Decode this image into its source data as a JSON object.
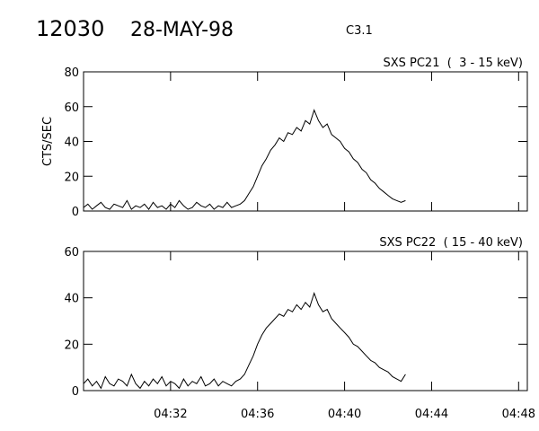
{
  "header": {
    "title": "12030",
    "date": "28-MAY-98",
    "class": "C3.1"
  },
  "chart_data": [
    {
      "type": "line",
      "subtitle": "SXS PC21  (  3 - 15 keV)",
      "ylabel": "CTS/SEC",
      "xlim": [
        28,
        48.4
      ],
      "ylim": [
        0,
        80
      ],
      "yticks": [
        0,
        20,
        40,
        60,
        80
      ],
      "x": [
        28.0,
        28.2,
        28.4,
        28.6,
        28.8,
        29.0,
        29.2,
        29.4,
        29.6,
        29.8,
        30.0,
        30.2,
        30.4,
        30.6,
        30.8,
        31.0,
        31.2,
        31.4,
        31.6,
        31.8,
        32.0,
        32.2,
        32.4,
        32.6,
        32.8,
        33.0,
        33.2,
        33.4,
        33.6,
        33.8,
        34.0,
        34.2,
        34.4,
        34.6,
        34.8,
        35.0,
        35.2,
        35.4,
        35.6,
        35.8,
        36.0,
        36.2,
        36.4,
        36.6,
        36.8,
        37.0,
        37.2,
        37.4,
        37.6,
        37.8,
        38.0,
        38.2,
        38.4,
        38.6,
        38.8,
        39.0,
        39.2,
        39.4,
        39.6,
        39.8,
        40.0,
        40.2,
        40.4,
        40.6,
        40.8,
        41.0,
        41.2,
        41.4,
        41.6,
        41.8,
        42.0,
        42.2,
        42.4,
        42.6,
        42.8
      ],
      "series": [
        {
          "color": "#000000",
          "values": [
            2,
            4,
            1,
            3,
            5,
            2,
            1,
            4,
            3,
            2,
            6,
            1,
            3,
            2,
            4,
            1,
            5,
            2,
            3,
            1,
            4,
            2,
            6,
            3,
            1,
            2,
            5,
            3,
            2,
            4,
            1,
            3,
            2,
            5,
            2,
            3,
            4,
            6,
            10,
            14,
            20,
            26,
            30,
            35,
            38,
            42,
            40,
            45,
            44,
            48,
            46,
            52,
            50,
            58,
            52,
            48,
            50,
            44,
            42,
            40,
            36,
            34,
            30,
            28,
            24,
            22,
            18,
            16,
            13,
            11,
            9,
            7,
            6,
            5,
            6
          ]
        }
      ]
    },
    {
      "type": "line",
      "subtitle": "SXS PC22  ( 15 - 40 keV)",
      "xlim": [
        28,
        48.4
      ],
      "ylim": [
        0,
        60
      ],
      "yticks": [
        0,
        20,
        40,
        60
      ],
      "xticks": [
        {
          "value": 32,
          "label": "04:32"
        },
        {
          "value": 36,
          "label": "04:36"
        },
        {
          "value": 40,
          "label": "04:40"
        },
        {
          "value": 44,
          "label": "04:44"
        },
        {
          "value": 48,
          "label": "04:48"
        }
      ],
      "x": [
        28.0,
        28.2,
        28.4,
        28.6,
        28.8,
        29.0,
        29.2,
        29.4,
        29.6,
        29.8,
        30.0,
        30.2,
        30.4,
        30.6,
        30.8,
        31.0,
        31.2,
        31.4,
        31.6,
        31.8,
        32.0,
        32.2,
        32.4,
        32.6,
        32.8,
        33.0,
        33.2,
        33.4,
        33.6,
        33.8,
        34.0,
        34.2,
        34.4,
        34.6,
        34.8,
        35.0,
        35.2,
        35.4,
        35.6,
        35.8,
        36.0,
        36.2,
        36.4,
        36.6,
        36.8,
        37.0,
        37.2,
        37.4,
        37.6,
        37.8,
        38.0,
        38.2,
        38.4,
        38.6,
        38.8,
        39.0,
        39.2,
        39.4,
        39.6,
        39.8,
        40.0,
        40.2,
        40.4,
        40.6,
        40.8,
        41.0,
        41.2,
        41.4,
        41.6,
        41.8,
        42.0,
        42.2,
        42.4,
        42.6,
        42.8
      ],
      "series": [
        {
          "color": "#000000",
          "values": [
            3,
            5,
            2,
            4,
            1,
            6,
            3,
            2,
            5,
            4,
            2,
            7,
            3,
            1,
            4,
            2,
            5,
            3,
            6,
            2,
            4,
            3,
            1,
            5,
            2,
            4,
            3,
            6,
            2,
            3,
            5,
            2,
            4,
            3,
            2,
            4,
            5,
            7,
            11,
            15,
            20,
            24,
            27,
            29,
            31,
            33,
            32,
            35,
            34,
            37,
            35,
            38,
            36,
            42,
            37,
            34,
            35,
            31,
            29,
            27,
            25,
            23,
            20,
            19,
            17,
            15,
            13,
            12,
            10,
            9,
            8,
            6,
            5,
            4,
            7
          ]
        }
      ]
    }
  ]
}
